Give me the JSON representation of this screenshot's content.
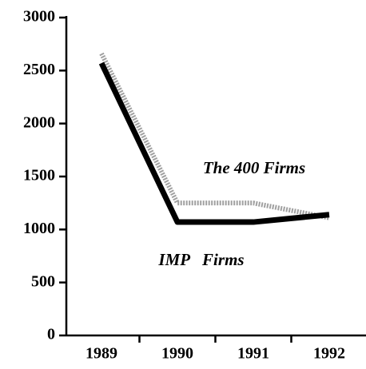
{
  "chart_data": {
    "type": "line",
    "categories": [
      "1989",
      "1990",
      "1991",
      "1992"
    ],
    "series": [
      {
        "name": "IMP   Firms",
        "color": "#000000",
        "values": [
          2570,
          1070,
          1070,
          1140
        ]
      },
      {
        "name": "The 400 Firms",
        "color": "#a0a0a0",
        "values": [
          2660,
          1250,
          1250,
          1110
        ]
      }
    ],
    "ylim": [
      0,
      3000
    ],
    "yticks": [
      0,
      500,
      1000,
      1500,
      2000,
      2500,
      3000
    ],
    "grid": false
  }
}
